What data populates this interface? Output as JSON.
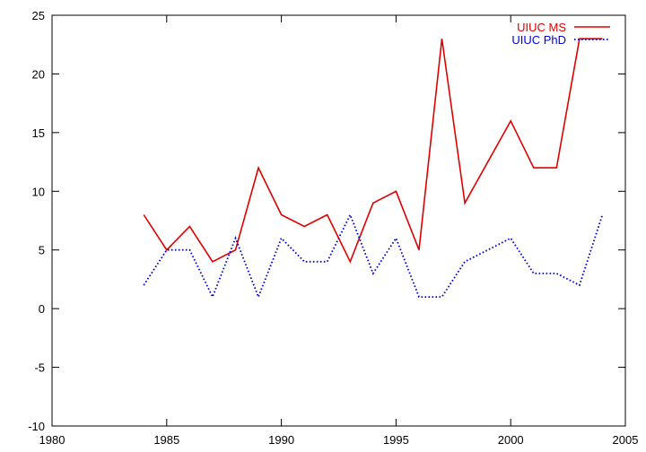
{
  "chart_data": {
    "type": "line",
    "title": "",
    "xlabel": "",
    "ylabel": "",
    "xlim": [
      1980,
      2005
    ],
    "ylim": [
      -10,
      25
    ],
    "xticks": [
      1980,
      1985,
      1990,
      1995,
      2000,
      2005
    ],
    "yticks": [
      -10,
      -5,
      0,
      5,
      10,
      15,
      20,
      25
    ],
    "grid": false,
    "legend_position": "top-right",
    "series": [
      {
        "name": "UIUC MS",
        "color": "#e00000",
        "style": "solid",
        "x": [
          1984,
          1985,
          1986,
          1987,
          1988,
          1989,
          1990,
          1991,
          1992,
          1993,
          1994,
          1995,
          1996,
          1997,
          1998,
          2000,
          2001,
          2002,
          2003,
          2004
        ],
        "y": [
          8,
          5,
          7,
          4,
          5,
          12,
          8,
          7,
          8,
          4,
          9,
          10,
          5,
          23,
          9,
          16,
          12,
          12,
          23,
          23
        ]
      },
      {
        "name": "UIUC PhD",
        "color": "#0000e0",
        "style": "dotted",
        "x": [
          1984,
          1985,
          1986,
          1987,
          1988,
          1989,
          1990,
          1991,
          1992,
          1993,
          1994,
          1995,
          1996,
          1997,
          1998,
          2000,
          2001,
          2002,
          2003,
          2004
        ],
        "y": [
          2,
          5,
          5,
          1,
          6,
          1,
          6,
          4,
          4,
          8,
          3,
          6,
          1,
          1,
          4,
          6,
          3,
          3,
          2,
          8
        ]
      }
    ]
  }
}
